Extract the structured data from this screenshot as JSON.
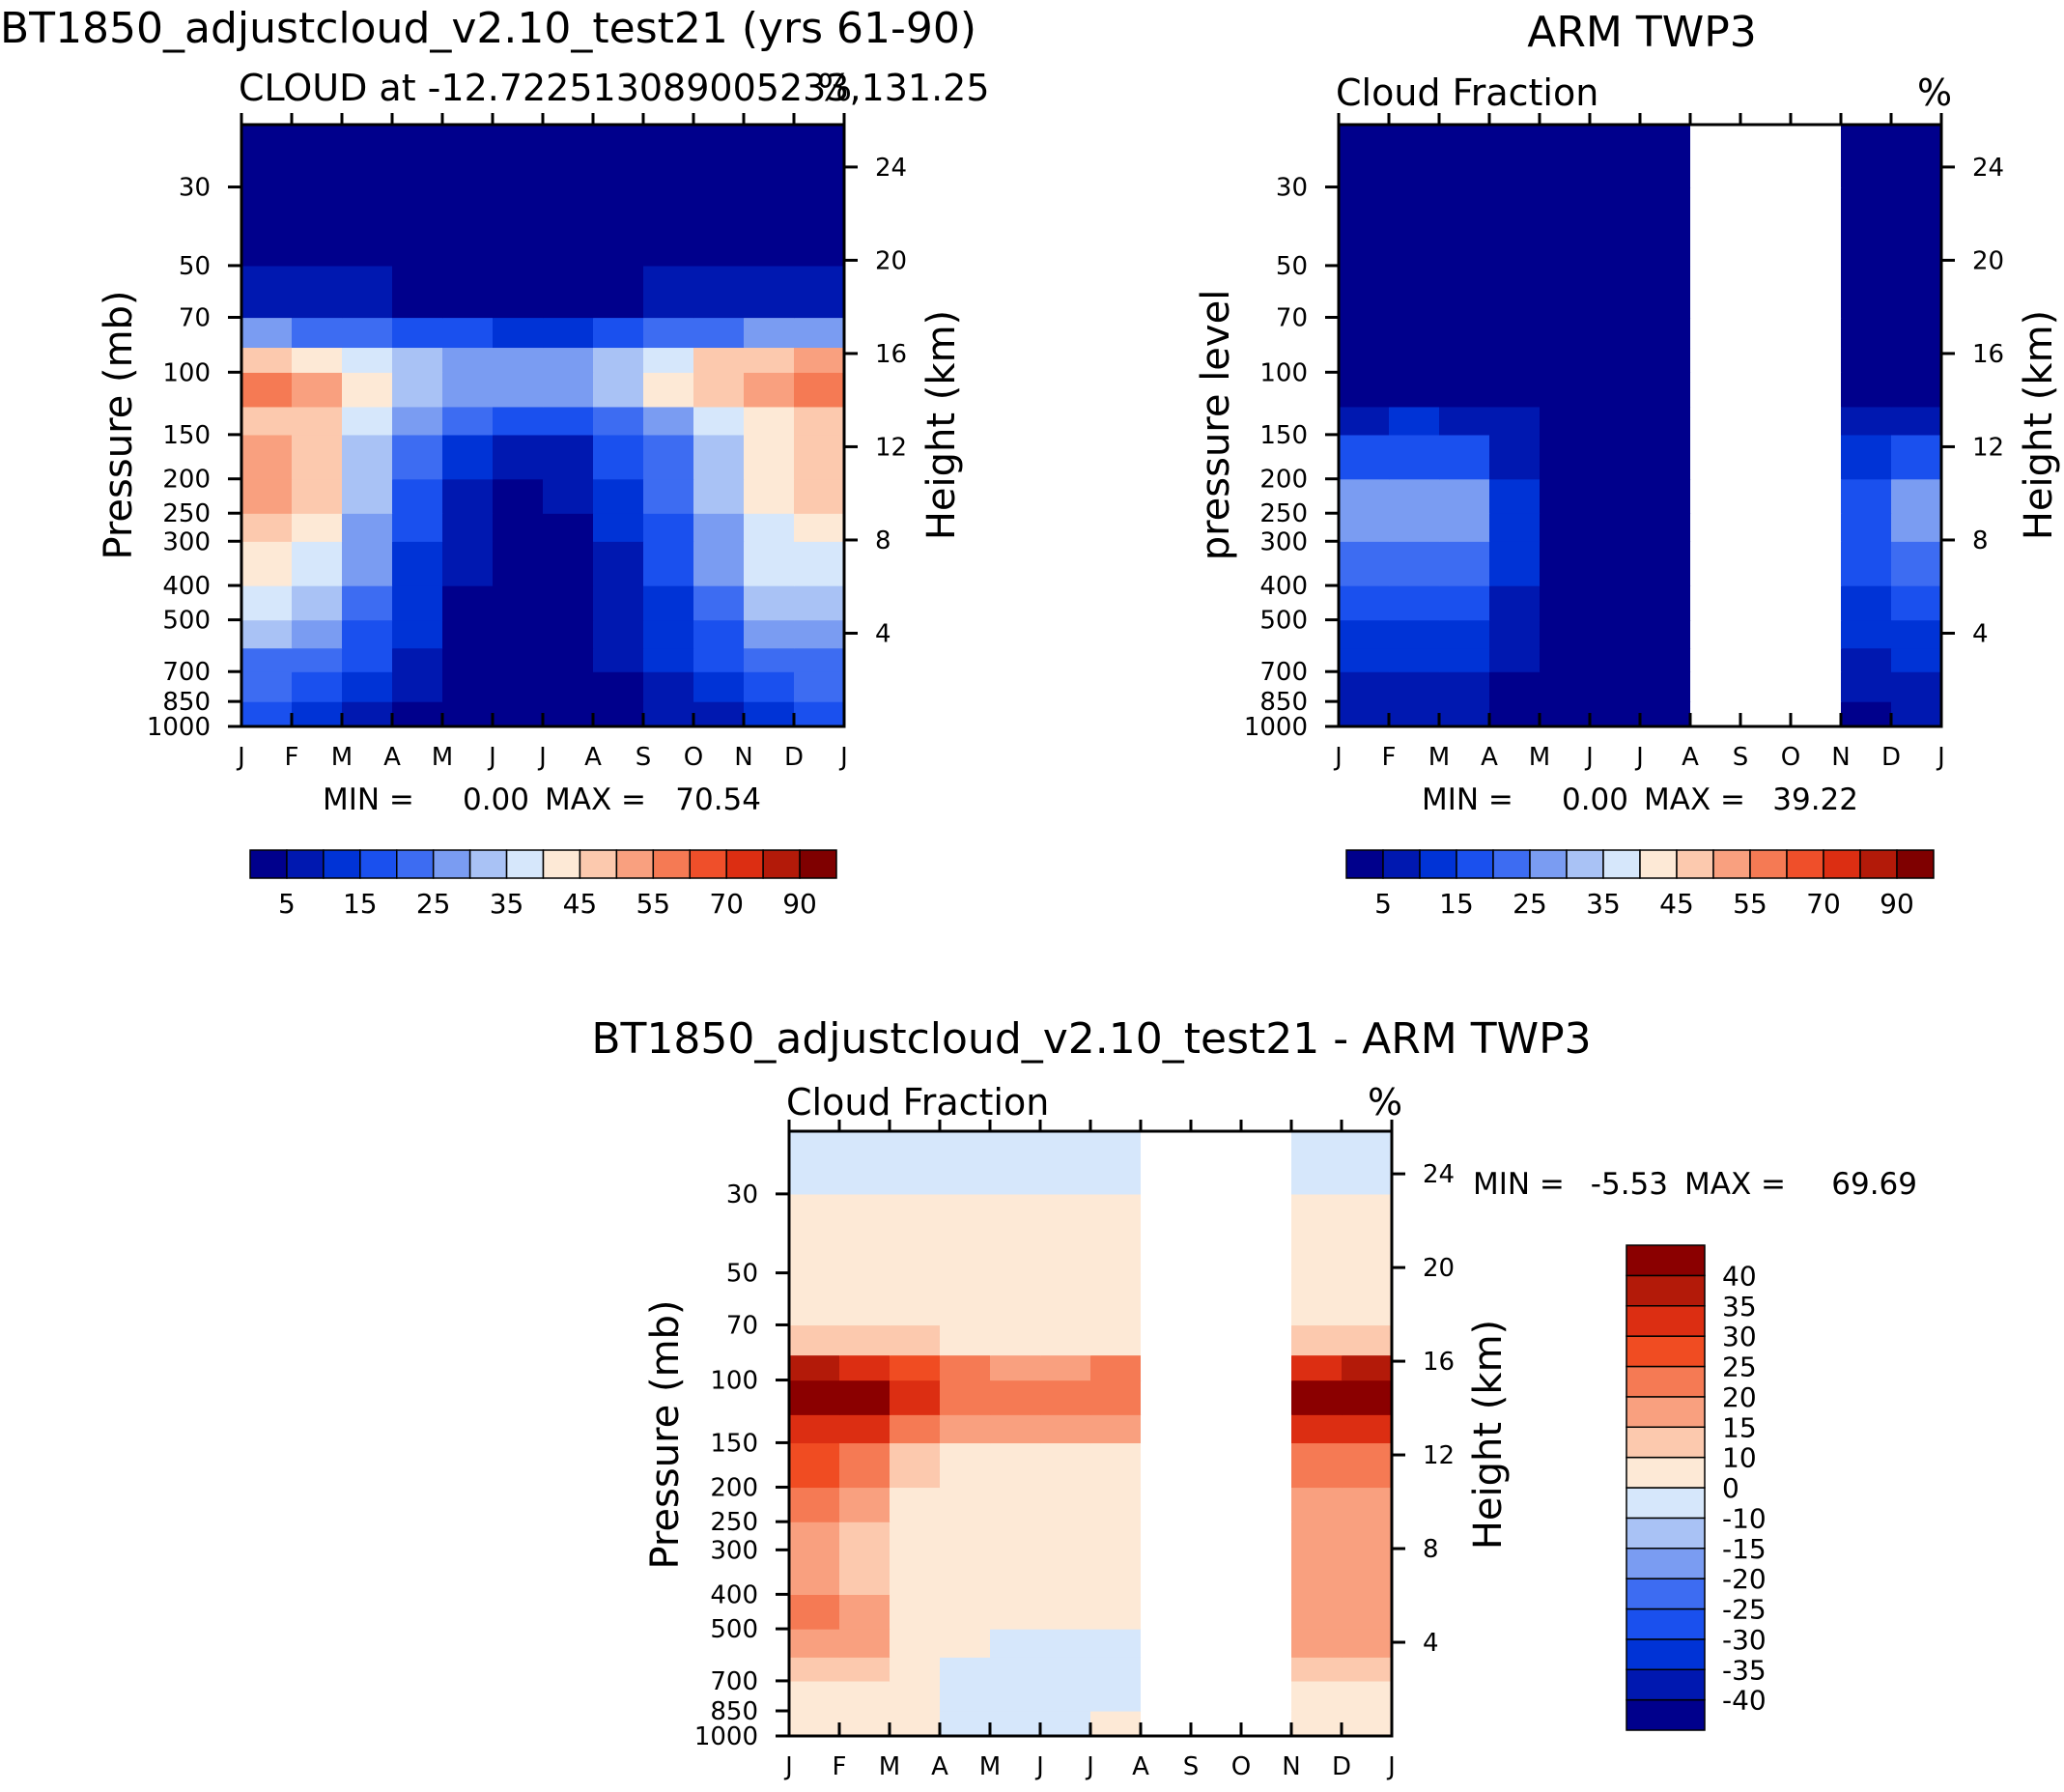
{
  "colors": {
    "background": "#ffffff",
    "missing_data": "#ffffff",
    "axis": "#000000",
    "cloud_palette": [
      "#00008c",
      "#0018b0",
      "#0033d6",
      "#1a50ee",
      "#3d6cf2",
      "#7a9cf2",
      "#a9c2f5",
      "#d6e7fb",
      "#fde9d6",
      "#fcc9ae",
      "#f9a07f",
      "#f57a54",
      "#ef4f2a",
      "#dc2e12",
      "#b31a09",
      "#7f0000"
    ],
    "diff_palette": [
      "#00008c",
      "#0018b0",
      "#0033d6",
      "#1a50ee",
      "#3d6cf2",
      "#7a9cf2",
      "#a9c2f5",
      "#d6e7fb",
      "#fde9d6",
      "#fcc9ae",
      "#f9a07f",
      "#f57a54",
      "#f04c22",
      "#dc2e12",
      "#b31a09",
      "#8b0000"
    ]
  },
  "chart_data": [
    {
      "id": "model",
      "type": "heatmap",
      "title": "BT1850_adjustcloud_v2.10_test21 (yrs 61-90)",
      "subtitle_left": "CLOUD at -12.722513089005233,131.25",
      "subtitle_right": "%",
      "ylabel": "Pressure (mb)",
      "y2label": "Height (km)",
      "xticks": [
        "J",
        "F",
        "M",
        "A",
        "M",
        "J",
        "J",
        "A",
        "S",
        "O",
        "N",
        "D",
        "J"
      ],
      "yticks": [
        30,
        50,
        70,
        100,
        150,
        200,
        250,
        300,
        400,
        500,
        700,
        850,
        1000
      ],
      "y2ticks": [
        24,
        20,
        16,
        12,
        8,
        4
      ],
      "y_scale": "log pressure",
      "ylim": [
        1000,
        20
      ],
      "min_label": "MIN =",
      "min_value": "0.00",
      "max_label": "MAX =",
      "max_value": "70.54",
      "colorbar_labels": [
        "5",
        "15",
        "25",
        "35",
        "45",
        "55",
        "70",
        "90"
      ],
      "months": [
        0,
        1,
        2,
        3,
        4,
        5,
        6,
        7,
        8,
        9,
        10,
        11,
        12
      ],
      "levels": [
        1000,
        850,
        700,
        600,
        500,
        400,
        300,
        250,
        200,
        150,
        125,
        100,
        85,
        70,
        50,
        30,
        20
      ],
      "values": [
        [
          12,
          12,
          10,
          3,
          1,
          0,
          0,
          0,
          2,
          4,
          9,
          11,
          12
        ],
        [
          20,
          18,
          15,
          8,
          3,
          1,
          1,
          2,
          5,
          10,
          16,
          19,
          20
        ],
        [
          22,
          20,
          18,
          12,
          4,
          2,
          2,
          3,
          6,
          12,
          18,
          22,
          22
        ],
        [
          26,
          30,
          20,
          14,
          5,
          2,
          2,
          3,
          8,
          14,
          22,
          26,
          26
        ],
        [
          32,
          38,
          24,
          16,
          6,
          2,
          2,
          3,
          10,
          16,
          24,
          32,
          32
        ],
        [
          36,
          42,
          28,
          18,
          8,
          3,
          3,
          4,
          12,
          18,
          28,
          38,
          36
        ],
        [
          42,
          48,
          32,
          22,
          10,
          4,
          4,
          5,
          14,
          22,
          32,
          42,
          42
        ],
        [
          46,
          52,
          34,
          24,
          12,
          4,
          4,
          6,
          16,
          24,
          34,
          46,
          46
        ],
        [
          48,
          56,
          38,
          26,
          14,
          4,
          4,
          7,
          18,
          26,
          38,
          48,
          48
        ],
        [
          46,
          50,
          40,
          30,
          20,
          12,
          10,
          14,
          22,
          30,
          40,
          46,
          46
        ],
        [
          50,
          52,
          42,
          34,
          26,
          22,
          20,
          24,
          30,
          36,
          44,
          48,
          50
        ],
        [
          64,
          60,
          46,
          38,
          32,
          38,
          32,
          36,
          44,
          52,
          60,
          64,
          64
        ],
        [
          38,
          36,
          32,
          28,
          24,
          22,
          22,
          24,
          28,
          32,
          36,
          38,
          38
        ],
        [
          14,
          14,
          12,
          10,
          8,
          6,
          6,
          7,
          10,
          14,
          16,
          18,
          14
        ],
        [
          3,
          3,
          2,
          1,
          0,
          0,
          0,
          0,
          0,
          1,
          2,
          3,
          3
        ],
        [
          0,
          0,
          0,
          0,
          0,
          0,
          0,
          0,
          0,
          0,
          0,
          0,
          0
        ],
        [
          0,
          0,
          0,
          0,
          0,
          0,
          0,
          0,
          0,
          0,
          0,
          0,
          0
        ]
      ]
    },
    {
      "id": "obs",
      "type": "heatmap",
      "title": "ARM TWP3",
      "subtitle_left": "Cloud Fraction",
      "subtitle_right": "%",
      "ylabel": "pressure level",
      "y2label": "Height (km)",
      "xticks": [
        "J",
        "F",
        "M",
        "A",
        "M",
        "J",
        "J",
        "A",
        "S",
        "O",
        "N",
        "D",
        "J"
      ],
      "yticks": [
        30,
        50,
        70,
        100,
        150,
        200,
        250,
        300,
        400,
        500,
        700,
        850,
        1000
      ],
      "y2ticks": [
        24,
        20,
        16,
        12,
        8,
        4
      ],
      "y_scale": "log pressure",
      "ylim": [
        1000,
        20
      ],
      "min_label": "MIN =",
      "min_value": "0.00",
      "max_label": "MAX =",
      "max_value": "39.22",
      "colorbar_labels": [
        "5",
        "15",
        "25",
        "35",
        "45",
        "55",
        "70",
        "90"
      ],
      "missing_months": [
        "S",
        "O"
      ],
      "months": [
        0,
        1,
        2,
        3,
        4,
        5,
        6,
        7,
        8,
        9,
        10,
        11,
        12
      ],
      "levels": [
        1000,
        850,
        700,
        600,
        500,
        400,
        300,
        250,
        200,
        150,
        125,
        100,
        85,
        70,
        50,
        30,
        20
      ],
      "values": [
        [
          4,
          2,
          4,
          3,
          0,
          0,
          0,
          0,
          null,
          null,
          5,
          3,
          4
        ],
        [
          8,
          6,
          10,
          6,
          2,
          4,
          0,
          0,
          null,
          null,
          4,
          6,
          8
        ],
        [
          10,
          8,
          14,
          8,
          2,
          0,
          0,
          0,
          null,
          null,
          6,
          8,
          10
        ],
        [
          12,
          10,
          16,
          10,
          3,
          0,
          0,
          0,
          null,
          null,
          8,
          10,
          12
        ],
        [
          16,
          12,
          18,
          12,
          3,
          0,
          0,
          0,
          null,
          null,
          10,
          14,
          16
        ],
        [
          22,
          16,
          22,
          14,
          4,
          0,
          0,
          0,
          null,
          null,
          12,
          18,
          22
        ],
        [
          30,
          20,
          34,
          18,
          6,
          0,
          0,
          0,
          null,
          null,
          14,
          22,
          30
        ],
        [
          32,
          22,
          38,
          20,
          6,
          0,
          0,
          0,
          null,
          null,
          14,
          24,
          32
        ],
        [
          26,
          20,
          26,
          16,
          6,
          0,
          0,
          0,
          null,
          null,
          12,
          20,
          26
        ],
        [
          12,
          12,
          14,
          10,
          4,
          0,
          0,
          0,
          null,
          null,
          8,
          12,
          12
        ],
        [
          6,
          6,
          8,
          6,
          2,
          0,
          0,
          0,
          null,
          null,
          4,
          6,
          6
        ],
        [
          2,
          2,
          3,
          2,
          0,
          0,
          0,
          0,
          null,
          null,
          1,
          2,
          2
        ],
        [
          0,
          0,
          0,
          0,
          0,
          0,
          0,
          0,
          null,
          null,
          0,
          0,
          0
        ],
        [
          0,
          0,
          0,
          0,
          0,
          0,
          0,
          0,
          null,
          null,
          0,
          0,
          0
        ],
        [
          0,
          0,
          0,
          0,
          0,
          0,
          0,
          0,
          null,
          null,
          0,
          0,
          0
        ],
        [
          0,
          0,
          0,
          0,
          0,
          0,
          0,
          0,
          null,
          null,
          0,
          0,
          0
        ],
        [
          0,
          0,
          0,
          0,
          0,
          0,
          0,
          0,
          null,
          null,
          0,
          0,
          0
        ]
      ]
    },
    {
      "id": "diff",
      "type": "heatmap",
      "title": "BT1850_adjustcloud_v2.10_test21 - ARM TWP3",
      "subtitle_left": "Cloud Fraction",
      "subtitle_right": "%",
      "ylabel": "Pressure (mb)",
      "y2label": "Height (km)",
      "xticks": [
        "J",
        "F",
        "M",
        "A",
        "M",
        "J",
        "J",
        "A",
        "S",
        "O",
        "N",
        "D",
        "J"
      ],
      "yticks": [
        30,
        50,
        70,
        100,
        150,
        200,
        250,
        300,
        400,
        500,
        700,
        850,
        1000
      ],
      "y2ticks": [
        24,
        20,
        16,
        12,
        8,
        4
      ],
      "y_scale": "log pressure",
      "ylim": [
        1000,
        20
      ],
      "min_label": "MIN =",
      "min_value": "-5.53",
      "max_label": "MAX =",
      "max_value": "69.69",
      "colorbar_labels": [
        "40",
        "35",
        "30",
        "25",
        "20",
        "15",
        "10",
        "0",
        "-10",
        "-15",
        "-20",
        "-25",
        "-30",
        "-35",
        "-40"
      ],
      "missing_months": [
        "S",
        "O"
      ],
      "months": [
        0,
        1,
        2,
        3,
        4,
        5,
        6,
        7,
        8,
        9,
        10,
        11,
        12
      ],
      "levels": [
        1000,
        850,
        700,
        600,
        500,
        400,
        300,
        250,
        200,
        150,
        125,
        100,
        85,
        70,
        50,
        30,
        20
      ],
      "values": [
        [
          5,
          5,
          3,
          0,
          0,
          0,
          0,
          0,
          null,
          null,
          5,
          5,
          5
        ],
        [
          8,
          8,
          5,
          -1,
          -1,
          0,
          -1,
          1,
          null,
          null,
          8,
          8,
          8
        ],
        [
          10,
          12,
          8,
          -1,
          -1,
          -1,
          -1,
          -1,
          null,
          null,
          10,
          12,
          10
        ],
        [
          14,
          18,
          10,
          2,
          -1,
          -1,
          -1,
          2,
          null,
          null,
          12,
          16,
          14
        ],
        [
          18,
          26,
          10,
          4,
          -1,
          1,
          -1,
          -1,
          null,
          null,
          14,
          18,
          18
        ],
        [
          16,
          20,
          8,
          5,
          2,
          4,
          4,
          4,
          null,
          null,
          16,
          18,
          16
        ],
        [
          14,
          18,
          8,
          4,
          3,
          4,
          5,
          5,
          null,
          null,
          16,
          16,
          14
        ],
        [
          16,
          22,
          8,
          4,
          3,
          4,
          6,
          6,
          null,
          null,
          18,
          18,
          16
        ],
        [
          18,
          26,
          12,
          6,
          4,
          4,
          4,
          4,
          null,
          null,
          16,
          20,
          18
        ],
        [
          26,
          32,
          20,
          14,
          10,
          12,
          10,
          14,
          null,
          null,
          24,
          28,
          26
        ],
        [
          36,
          40,
          30,
          22,
          18,
          20,
          18,
          22,
          null,
          null,
          32,
          38,
          36
        ],
        [
          50,
          54,
          40,
          30,
          24,
          28,
          24,
          30,
          null,
          null,
          44,
          52,
          50
        ],
        [
          20,
          22,
          18,
          14,
          12,
          10,
          12,
          14,
          null,
          null,
          16,
          20,
          20
        ],
        [
          8,
          8,
          6,
          6,
          4,
          4,
          4,
          5,
          null,
          null,
          6,
          8,
          8
        ],
        [
          2,
          2,
          2,
          2,
          1,
          1,
          1,
          1,
          null,
          null,
          2,
          2,
          2
        ],
        [
          -1,
          -1,
          -1,
          -1,
          -1,
          -1,
          -1,
          -1,
          null,
          null,
          -1,
          -1,
          -1
        ],
        [
          -1,
          -1,
          -1,
          -1,
          -1,
          -1,
          -1,
          -1,
          null,
          null,
          -1,
          -1,
          -1
        ]
      ]
    }
  ]
}
